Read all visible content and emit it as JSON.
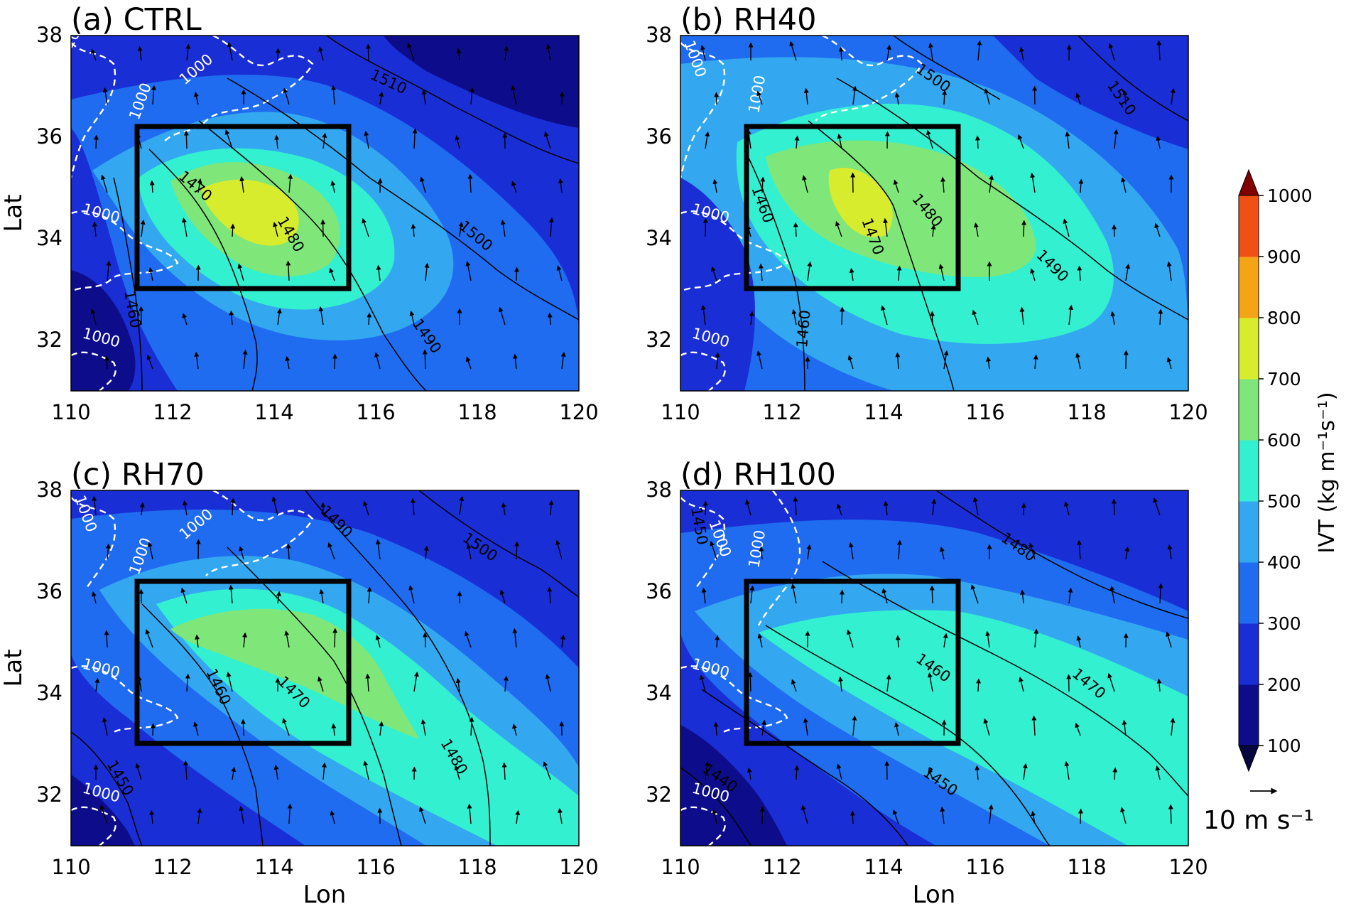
{
  "figure": {
    "ref_vector_label": "10 m s⁻¹",
    "colorbar": {
      "label": "IVT (kg m⁻¹s⁻¹)",
      "ticks": [
        "100",
        "200",
        "300",
        "400",
        "500",
        "600",
        "700",
        "800",
        "900",
        "1000"
      ],
      "colors": [
        "#0d0d8c",
        "#1a2ed6",
        "#1f6cf0",
        "#33a8f0",
        "#33f0d0",
        "#7fe67a",
        "#d8ec2e",
        "#f5a416",
        "#f05016",
        "#c81410"
      ],
      "extend": "both",
      "low_extend_color": "#06063f",
      "high_extend_color": "#800000"
    }
  },
  "chart_data": [
    {
      "type": "contour",
      "panel_title": "(a) CTRL",
      "xlabel": "",
      "ylabel": "Lat",
      "xlim": [
        110,
        120
      ],
      "ylim": [
        31,
        38
      ],
      "xticks": [
        "110",
        "112",
        "114",
        "116",
        "118",
        "120"
      ],
      "yticks": [
        "32",
        "34",
        "36",
        "38"
      ],
      "box": {
        "lon": [
          111.3,
          115.5
        ],
        "lat": [
          33.0,
          36.2
        ]
      },
      "ivt_core": {
        "lon": 113.8,
        "lat": 34.6,
        "max_level": "600-700"
      },
      "height_contour_labels": [
        "1470",
        "1480",
        "1490",
        "1500",
        "1510",
        "1460"
      ],
      "terrain_contour_labels": [
        "1000",
        "1000",
        "1000",
        "1000",
        "1000"
      ]
    },
    {
      "type": "contour",
      "panel_title": "(b) RH40",
      "xlabel": "",
      "ylabel": "",
      "xlim": [
        110,
        120
      ],
      "ylim": [
        31,
        38
      ],
      "xticks": [
        "110",
        "112",
        "114",
        "116",
        "118",
        "120"
      ],
      "yticks": [
        "32",
        "34",
        "36",
        "38"
      ],
      "box": {
        "lon": [
          111.3,
          115.5
        ],
        "lat": [
          33.0,
          36.2
        ]
      },
      "ivt_core": {
        "lon": 113.8,
        "lat": 34.6,
        "max_level": "600-700"
      },
      "height_contour_labels": [
        "1460",
        "1470",
        "1480",
        "1490",
        "1500",
        "1510",
        "1460"
      ],
      "terrain_contour_labels": [
        "1000",
        "1000",
        "1000",
        "1000"
      ]
    },
    {
      "type": "contour",
      "panel_title": "(c) RH70",
      "xlabel": "Lon",
      "ylabel": "Lat",
      "xlim": [
        110,
        120
      ],
      "ylim": [
        31,
        38
      ],
      "xticks": [
        "110",
        "112",
        "114",
        "116",
        "118",
        "120"
      ],
      "yticks": [
        "32",
        "34",
        "36",
        "38"
      ],
      "box": {
        "lon": [
          111.3,
          115.5
        ],
        "lat": [
          33.0,
          36.2
        ]
      },
      "ivt_core": {
        "lon": 114.2,
        "lat": 34.5,
        "max_level": "500-600"
      },
      "height_contour_labels": [
        "1460",
        "1470",
        "1480",
        "1490",
        "1500",
        "1450"
      ],
      "terrain_contour_labels": [
        "1000",
        "1000",
        "1000",
        "1000",
        "1000"
      ]
    },
    {
      "type": "contour",
      "panel_title": "(d) RH100",
      "xlabel": "Lon",
      "ylabel": "",
      "xlim": [
        110,
        120
      ],
      "ylim": [
        31,
        38
      ],
      "xticks": [
        "110",
        "112",
        "114",
        "116",
        "118",
        "120"
      ],
      "yticks": [
        "32",
        "34",
        "36",
        "38"
      ],
      "box": {
        "lon": [
          111.3,
          115.5
        ],
        "lat": [
          33.0,
          36.2
        ]
      },
      "ivt_core": {
        "lon": 115.5,
        "lat": 34.2,
        "max_level": "400-500"
      },
      "height_contour_labels": [
        "1460",
        "1470",
        "1480",
        "1450",
        "1440",
        "1450"
      ],
      "terrain_contour_labels": [
        "1000",
        "1000",
        "1000",
        "1000"
      ]
    }
  ]
}
